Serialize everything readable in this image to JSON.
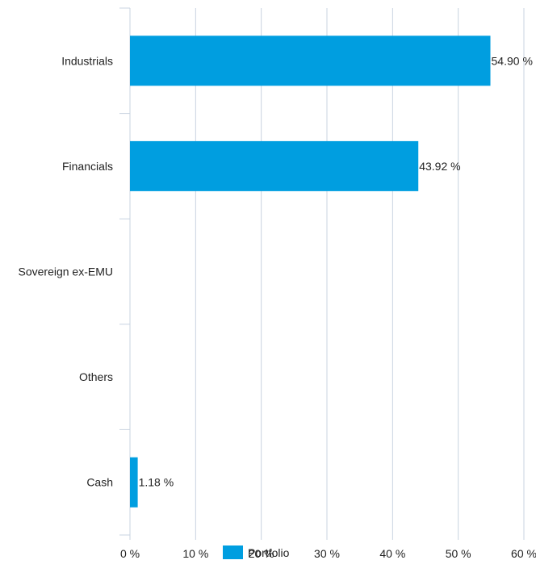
{
  "chart_data": {
    "type": "bar",
    "orientation": "horizontal",
    "categories": [
      "Industrials",
      "Financials",
      "Sovereign ex-EMU",
      "Others",
      "Cash"
    ],
    "series": [
      {
        "name": "Portfolio",
        "values": [
          54.9,
          43.92,
          null,
          null,
          1.18
        ],
        "color": "#009ee0"
      }
    ],
    "data_labels": [
      "54.90 %",
      "43.92 %",
      "",
      "",
      "1.18 %"
    ],
    "xlim": [
      0,
      60
    ],
    "xticks": [
      0,
      10,
      20,
      30,
      40,
      50,
      60
    ],
    "xtick_labels": [
      "0 %",
      "10 %",
      "20 %",
      "30 %",
      "40 %",
      "50 %",
      "60 %"
    ],
    "grid": true,
    "grid_color": "#c8d3e0",
    "legend_position": "bottom-center",
    "title": "",
    "xlabel": "",
    "ylabel": ""
  },
  "legend": {
    "label": "Portfolio",
    "color": "#009ee0"
  }
}
